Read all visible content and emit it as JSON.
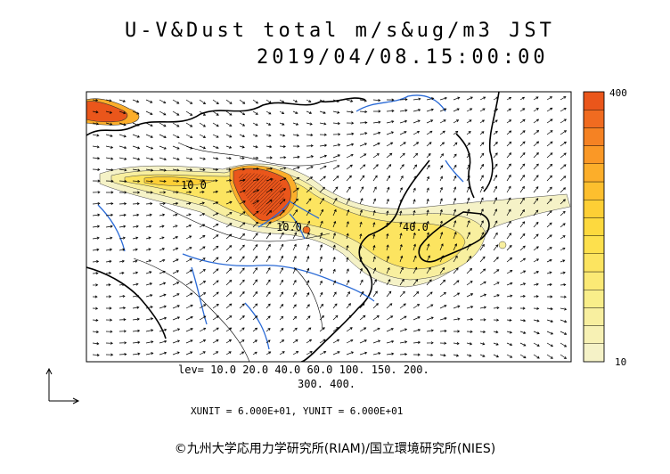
{
  "title": "U-V&Dust total m/s&ug/m3 JST",
  "datetime": "2019/04/08.15:00:00",
  "colorbar": {
    "max_label": "400",
    "min_label": "10",
    "colors": [
      "#f5f2c7",
      "#f7f1b4",
      "#f8ef9f",
      "#f9ee8a",
      "#fbe975",
      "#fce460",
      "#fde04d",
      "#fdd93e",
      "#fdcf35",
      "#fdbf2e",
      "#fcae2a",
      "#fa9826",
      "#f58223",
      "#f06b20",
      "#ea561b"
    ]
  },
  "contour_labels": [
    "10.0",
    "40.0",
    "10.0"
  ],
  "levels_line1": "lev= 10.0 20.0 40.0 60.0 100. 150. 200.",
  "levels_line2": "300. 400.",
  "units": "XUNIT = 6.000E+01, YUNIT = 6.000E+01",
  "credit": "©九州大学応用力学研究所(RIAM)/国立環境研究所(NIES)"
}
